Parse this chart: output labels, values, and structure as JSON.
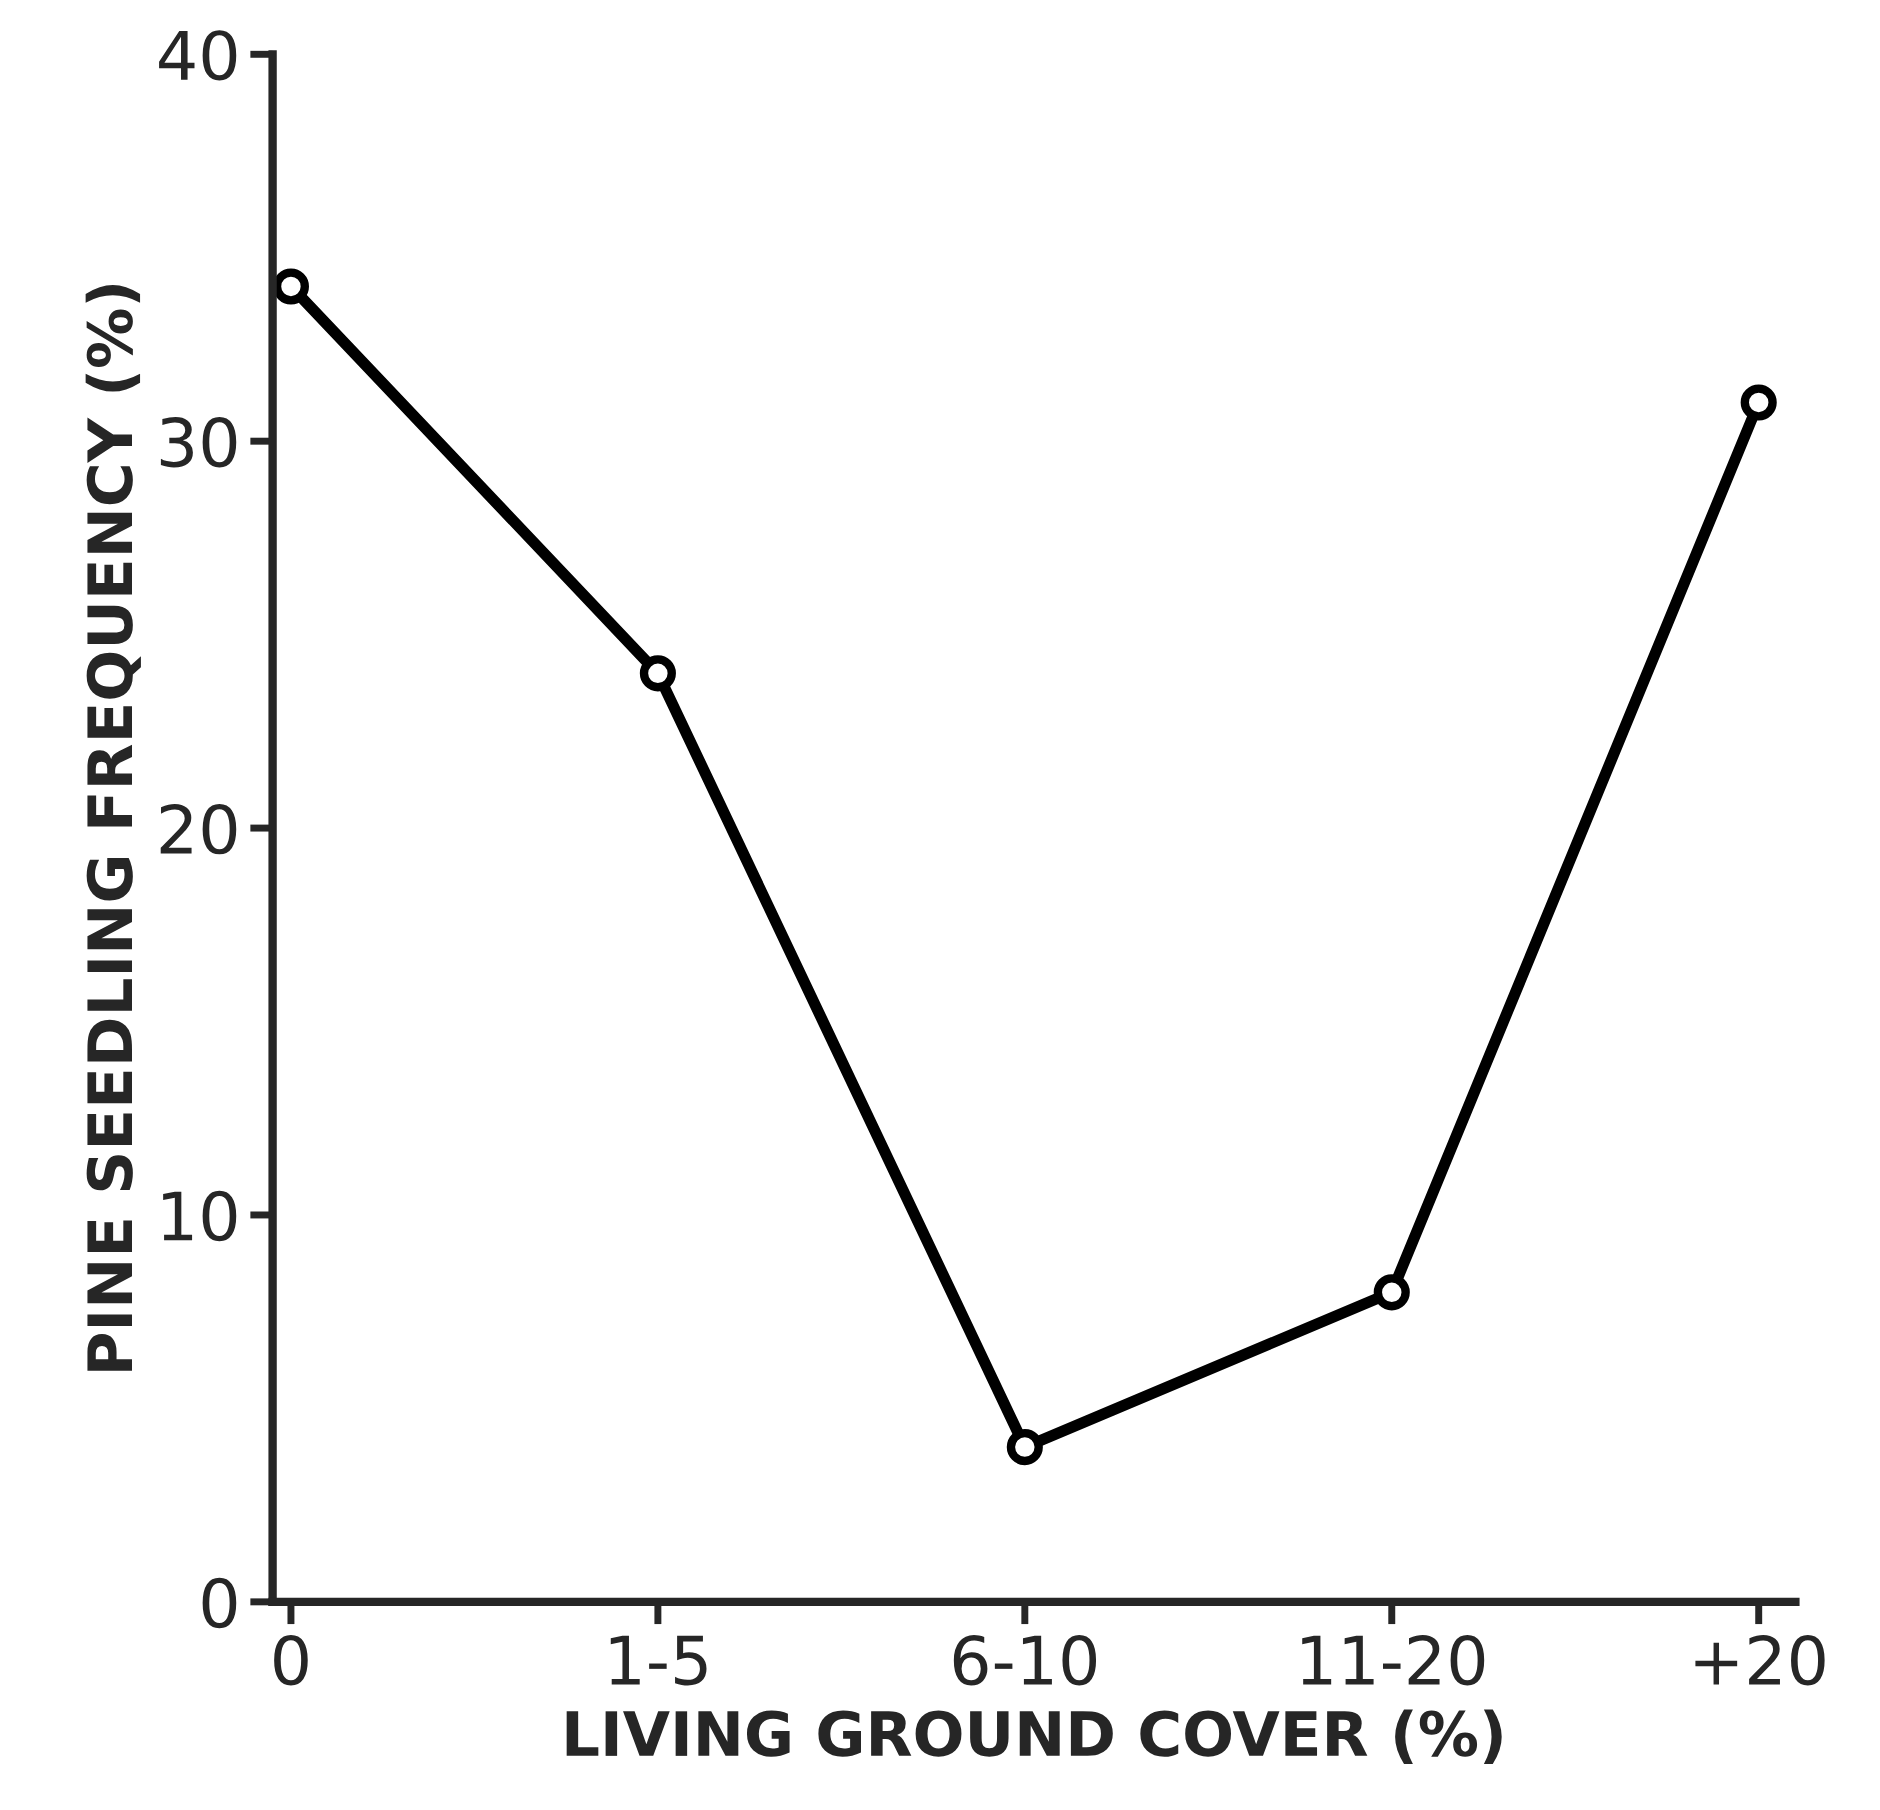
{
  "chart_data": {
    "type": "line",
    "xlabel": "LIVING GROUND COVER (%)",
    "ylabel": "PINE SEEDLING FREQUENCY (%)",
    "categories": [
      "0",
      "1-5",
      "6-10",
      "11-20",
      "+20"
    ],
    "series": [
      {
        "color": "#000000",
        "values": [
          34,
          24,
          4,
          8,
          31
        ]
      }
    ],
    "ylim": [
      0,
      40
    ],
    "yticks": [
      0,
      10,
      20,
      30,
      40
    ],
    "marker": "circle",
    "line_style": "solid"
  }
}
